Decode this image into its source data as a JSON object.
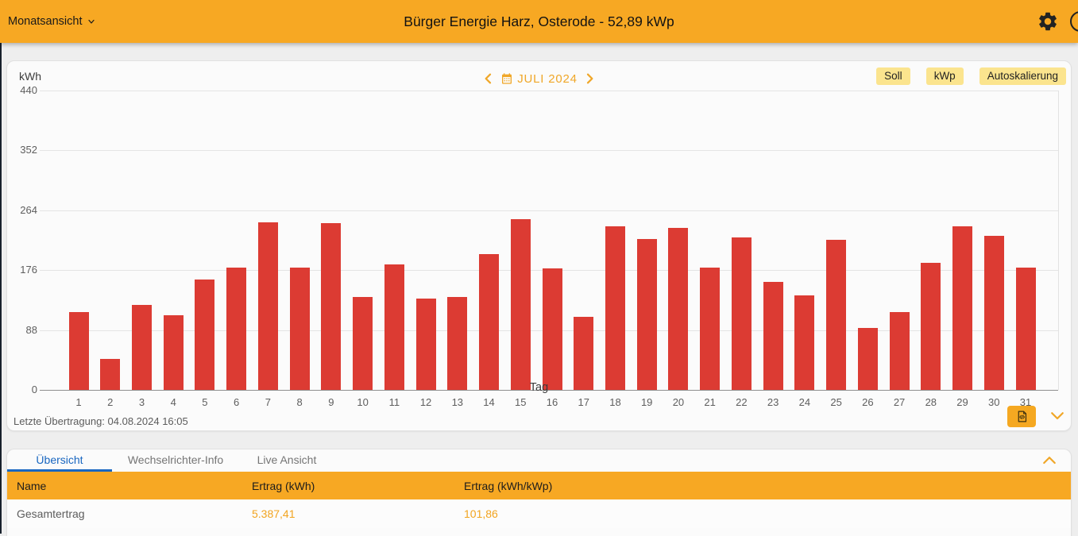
{
  "topbar": {
    "view_selector": "Monatsansicht",
    "title": "Bürger Energie Harz, Osterode - 52,89 kWp"
  },
  "chart_card": {
    "unit_label": "kWh",
    "month_label": "JULI 2024",
    "toggles": [
      "Soll",
      "kWp",
      "Autoskalierung"
    ],
    "xlabel": "Tag",
    "last_transmission": "Letzte Übertragung: 04.08.2024 16:05"
  },
  "chart_data": {
    "type": "bar",
    "title": "JULI 2024",
    "xlabel": "Tag",
    "ylabel": "kWh",
    "ylim": [
      0,
      440
    ],
    "yticks": [
      0,
      88,
      176,
      264,
      352,
      440
    ],
    "grid": true,
    "legend": false,
    "bar_color": "#dc3b33",
    "categories": [
      1,
      2,
      3,
      4,
      5,
      6,
      7,
      8,
      9,
      10,
      11,
      12,
      13,
      14,
      15,
      16,
      17,
      18,
      19,
      20,
      21,
      22,
      23,
      24,
      25,
      26,
      27,
      28,
      29,
      30,
      31
    ],
    "values": [
      114,
      45,
      125,
      110,
      162,
      180,
      246,
      180,
      245,
      137,
      184,
      134,
      136,
      199,
      251,
      178,
      107,
      240,
      222,
      238,
      180,
      224,
      159,
      139,
      221,
      91,
      114,
      187,
      240,
      227,
      180
    ]
  },
  "bottom_panel": {
    "tabs": [
      {
        "label": "Übersicht",
        "active": true
      },
      {
        "label": "Wechselrichter-Info",
        "active": false
      },
      {
        "label": "Live Ansicht",
        "active": false
      }
    ],
    "table": {
      "headers": [
        "Name",
        "Ertrag (kWh)",
        "Ertrag (kWh/kWp)"
      ],
      "rows": [
        {
          "name": "Gesamtertrag",
          "ertrag_kwh": "5.387,41",
          "ertrag_kwh_kwp": "101,86"
        }
      ]
    }
  },
  "colors": {
    "topbar_orange": "#f7a823",
    "bar_red": "#dc3b33",
    "accent_orange": "#f0a728",
    "toggle_yellow": "#fbe48e",
    "tab_blue": "#1866c0",
    "value_orange": "#f2a41f"
  },
  "icons": {
    "topbar_right": [
      "gear-icon",
      "partial-circle-icon"
    ],
    "month_nav": [
      "chevron-left-icon",
      "calendar-icon",
      "chevron-right-icon"
    ],
    "chart_footer": [
      "export-file-icon",
      "chevron-down-icon"
    ],
    "bottom_panel": [
      "chevron-up-icon"
    ]
  }
}
